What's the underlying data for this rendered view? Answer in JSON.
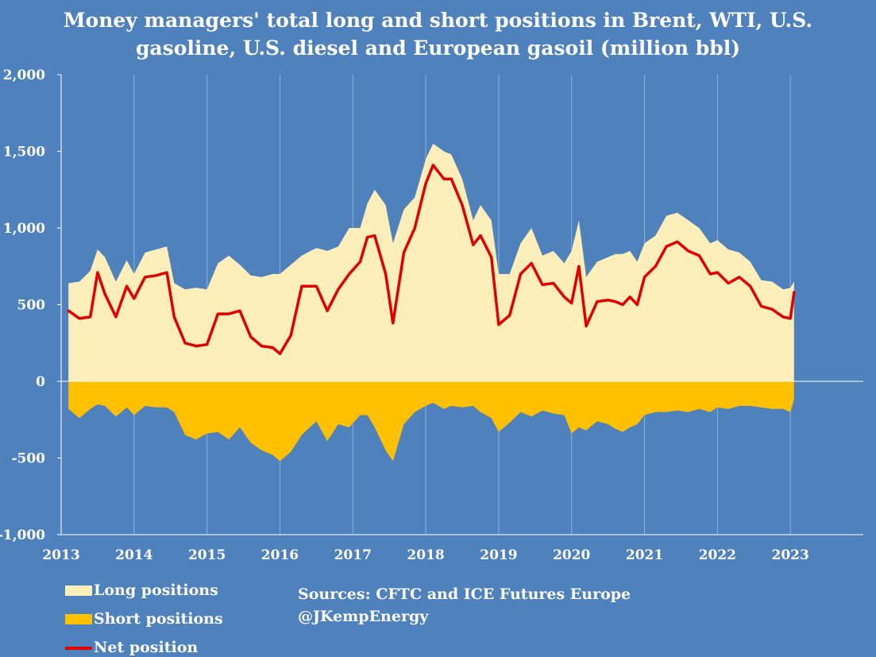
{
  "title": {
    "line1": "Money managers' total long and short positions in Brent, WTI, U.S.",
    "line2": "gasoline, U.S. diesel and European gasoil  (million bbl)"
  },
  "colors": {
    "background": "#4f81bd",
    "long": "#fdeeba",
    "short": "#ffc000",
    "net": "#e00000",
    "text": "#ffffff",
    "grid": "#8fb0d8",
    "axis": "#ffffff"
  },
  "legend": {
    "long_label": "Long positions",
    "short_label": "Short positions",
    "net_label": "Net position"
  },
  "sources": {
    "line1": "Sources: CFTC and ICE Futures Europe",
    "line2": "@JKempEnergy"
  },
  "chart_data": {
    "type": "area",
    "title": "Money managers' total long and short positions in Brent, WTI, U.S. gasoline, U.S. diesel and European gasoil  (million bbl)",
    "xlabel": "",
    "ylabel": "",
    "xlim": [
      2013,
      2024
    ],
    "ylim": [
      -1000,
      2000
    ],
    "x_ticks": [
      2013,
      2014,
      2015,
      2016,
      2017,
      2018,
      2019,
      2020,
      2021,
      2022,
      2023
    ],
    "x_tick_labels": [
      "2013",
      "2014",
      "2015",
      "2016",
      "2017",
      "2018",
      "2019",
      "2020",
      "2021",
      "2022",
      "2023"
    ],
    "y_ticks": [
      -1000,
      -500,
      0,
      500,
      1000,
      1500,
      2000
    ],
    "y_tick_labels": [
      "-1,000",
      "-500",
      "0",
      "500",
      "1,000",
      "1,500",
      "2,000"
    ],
    "grid": "vertical at year ticks",
    "legend_position": "bottom-left",
    "x": [
      2013.1,
      2013.25,
      2013.4,
      2013.5,
      2013.6,
      2013.75,
      2013.9,
      2014.0,
      2014.15,
      2014.3,
      2014.45,
      2014.55,
      2014.7,
      2014.85,
      2015.0,
      2015.15,
      2015.3,
      2015.45,
      2015.6,
      2015.75,
      2015.9,
      2016.0,
      2016.15,
      2016.3,
      2016.5,
      2016.65,
      2016.8,
      2016.95,
      2017.1,
      2017.2,
      2017.3,
      2017.45,
      2017.55,
      2017.7,
      2017.85,
      2018.0,
      2018.1,
      2018.25,
      2018.35,
      2018.5,
      2018.65,
      2018.75,
      2018.9,
      2019.0,
      2019.15,
      2019.3,
      2019.45,
      2019.6,
      2019.75,
      2019.9,
      2020.0,
      2020.1,
      2020.2,
      2020.35,
      2020.5,
      2020.6,
      2020.7,
      2020.8,
      2020.9,
      2021.0,
      2021.15,
      2021.3,
      2021.45,
      2021.6,
      2021.75,
      2021.9,
      2022.0,
      2022.15,
      2022.3,
      2022.45,
      2022.6,
      2022.75,
      2022.9,
      2023.0,
      2023.05
    ],
    "series": [
      {
        "name": "Long positions",
        "style": "area",
        "values": [
          640,
          650,
          720,
          860,
          810,
          650,
          790,
          700,
          840,
          860,
          880,
          640,
          600,
          610,
          600,
          770,
          820,
          760,
          690,
          680,
          700,
          700,
          760,
          820,
          870,
          850,
          880,
          1000,
          1000,
          1160,
          1250,
          1150,
          900,
          1120,
          1200,
          1450,
          1550,
          1500,
          1480,
          1320,
          1050,
          1150,
          1050,
          700,
          700,
          900,
          1000,
          820,
          850,
          770,
          850,
          1050,
          680,
          780,
          810,
          830,
          830,
          850,
          780,
          900,
          950,
          1080,
          1100,
          1050,
          1000,
          900,
          920,
          860,
          840,
          780,
          660,
          650,
          600,
          610,
          650
        ]
      },
      {
        "name": "Short positions",
        "style": "area",
        "values": [
          -180,
          -240,
          -180,
          -150,
          -160,
          -230,
          -170,
          -220,
          -160,
          -170,
          -170,
          -200,
          -350,
          -380,
          -340,
          -330,
          -380,
          -300,
          -400,
          -450,
          -480,
          -520,
          -460,
          -350,
          -260,
          -390,
          -280,
          -300,
          -220,
          -220,
          -300,
          -450,
          -520,
          -280,
          -200,
          -160,
          -140,
          -180,
          -160,
          -170,
          -160,
          -200,
          -240,
          -330,
          -270,
          -200,
          -230,
          -190,
          -210,
          -220,
          -340,
          -300,
          -320,
          -260,
          -280,
          -310,
          -330,
          -300,
          -280,
          -220,
          -200,
          -200,
          -190,
          -200,
          -180,
          -200,
          -170,
          -180,
          -160,
          -160,
          -170,
          -180,
          -180,
          -200,
          -120
        ]
      },
      {
        "name": "Net position",
        "style": "line",
        "values": [
          460,
          410,
          420,
          710,
          570,
          420,
          620,
          540,
          680,
          690,
          710,
          420,
          250,
          230,
          240,
          440,
          440,
          460,
          290,
          230,
          220,
          180,
          300,
          620,
          620,
          460,
          600,
          700,
          780,
          940,
          950,
          700,
          380,
          840,
          1000,
          1290,
          1410,
          1320,
          1320,
          1150,
          890,
          950,
          810,
          370,
          430,
          700,
          770,
          630,
          640,
          550,
          510,
          750,
          360,
          520,
          530,
          520,
          500,
          550,
          500,
          680,
          750,
          880,
          910,
          850,
          820,
          700,
          710,
          640,
          680,
          620,
          490,
          470,
          420,
          410,
          580
        ]
      }
    ]
  }
}
